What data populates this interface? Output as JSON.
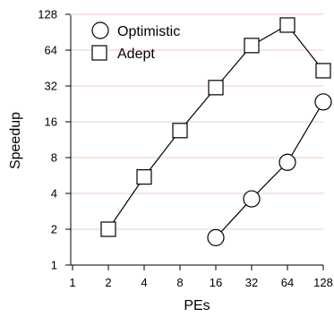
{
  "chart_data": {
    "type": "line",
    "title": "",
    "xlabel": "PEs",
    "ylabel": "Speedup",
    "x_scale": "log2",
    "y_scale": "log2",
    "xlim": [
      1,
      128
    ],
    "ylim": [
      1,
      128
    ],
    "x_ticks": [
      "1",
      "2",
      "4",
      "8",
      "16",
      "32",
      "64",
      "128"
    ],
    "y_ticks": [
      "1",
      "2",
      "4",
      "8",
      "16",
      "32",
      "64",
      "128"
    ],
    "grid": "horizontal",
    "grid_color": "#f2c8c8",
    "legend_position": "top-left",
    "series": [
      {
        "name": "Optimistic",
        "marker": "circle",
        "x": [
          16,
          32,
          64,
          128
        ],
        "y": [
          1.7,
          3.6,
          7.3,
          23.5
        ]
      },
      {
        "name": "Adept",
        "marker": "square",
        "x": [
          2,
          4,
          8,
          16,
          32,
          64,
          128
        ],
        "y": [
          2.0,
          5.5,
          13.5,
          31,
          70,
          104,
          43
        ]
      }
    ]
  }
}
